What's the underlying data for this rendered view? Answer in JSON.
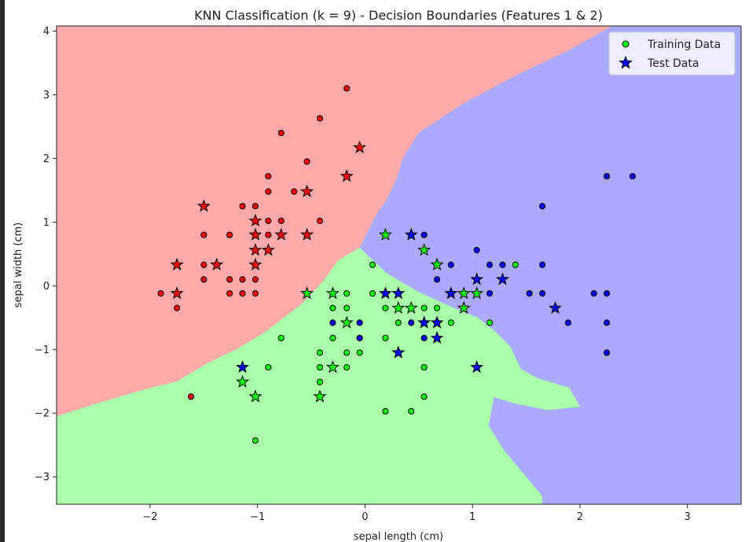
{
  "chart_data": {
    "type": "scatter",
    "title": "KNN Classification (k = 9) - Decision Boundaries (Features 1 & 2)",
    "xlabel": "sepal length (cm)",
    "ylabel": "sepal width (cm)",
    "xlim": [
      -2.87,
      3.5
    ],
    "ylim": [
      -3.43,
      4.08
    ],
    "x_ticks": [
      -2,
      -1,
      0,
      1,
      2,
      3
    ],
    "y_ticks": [
      -3,
      -2,
      -1,
      0,
      1,
      2,
      3,
      4
    ],
    "x_tick_labels": [
      "−2",
      "−1",
      "0",
      "1",
      "2",
      "3"
    ],
    "y_tick_labels": [
      "−3",
      "−2",
      "−1",
      "0",
      "1",
      "2",
      "3",
      "4"
    ],
    "grid": false,
    "legend_position": "top-right",
    "legend": [
      {
        "label": "Training Data",
        "marker": "circle",
        "color": "#00ff00"
      },
      {
        "label": "Test Data",
        "marker": "star",
        "color": "#0000ff"
      }
    ],
    "class_colors": {
      "region": [
        "#ffaaaa",
        "#aaffaa",
        "#aaaaff"
      ],
      "point": [
        "#ff0000",
        "#00ff00",
        "#0000ff"
      ]
    },
    "regions": [
      {
        "class": 0,
        "polygon": [
          [
            -2.87,
            4.08
          ],
          [
            2.3,
            4.08
          ],
          [
            1.9,
            3.7
          ],
          [
            1.4,
            3.3
          ],
          [
            0.9,
            2.85
          ],
          [
            0.5,
            2.4
          ],
          [
            0.35,
            2.0
          ],
          [
            0.3,
            1.7
          ],
          [
            0.2,
            1.35
          ],
          [
            0.1,
            1.1
          ],
          [
            -0.05,
            0.6
          ],
          [
            -0.25,
            0.4
          ],
          [
            -0.4,
            0.05
          ],
          [
            -0.6,
            -0.3
          ],
          [
            -0.95,
            -0.75
          ],
          [
            -1.2,
            -1.0
          ],
          [
            -1.45,
            -1.2
          ],
          [
            -1.75,
            -1.5
          ],
          [
            -2.1,
            -1.65
          ],
          [
            -2.5,
            -1.85
          ],
          [
            -2.87,
            -2.05
          ]
        ]
      },
      {
        "class": 1,
        "polygon": [
          [
            -2.87,
            -2.05
          ],
          [
            -2.5,
            -1.85
          ],
          [
            -2.1,
            -1.65
          ],
          [
            -1.75,
            -1.5
          ],
          [
            -1.45,
            -1.2
          ],
          [
            -1.2,
            -1.0
          ],
          [
            -0.95,
            -0.75
          ],
          [
            -0.6,
            -0.3
          ],
          [
            -0.4,
            0.05
          ],
          [
            -0.25,
            0.4
          ],
          [
            -0.05,
            0.6
          ],
          [
            0.2,
            0.2
          ],
          [
            0.5,
            -0.1
          ],
          [
            0.7,
            -0.25
          ],
          [
            0.9,
            -0.4
          ],
          [
            1.05,
            -0.5
          ],
          [
            1.2,
            -0.7
          ],
          [
            1.35,
            -0.95
          ],
          [
            1.45,
            -1.3
          ],
          [
            1.6,
            -1.45
          ],
          [
            1.9,
            -1.6
          ],
          [
            2.0,
            -1.9
          ],
          [
            1.7,
            -1.95
          ],
          [
            1.4,
            -1.85
          ],
          [
            1.2,
            -1.75
          ],
          [
            1.15,
            -2.2
          ],
          [
            1.3,
            -2.6
          ],
          [
            1.5,
            -3.0
          ],
          [
            1.65,
            -3.3
          ],
          [
            1.65,
            -3.43
          ],
          [
            -2.87,
            -3.43
          ]
        ]
      }
    ],
    "series": [
      {
        "name": "Training Data",
        "marker": "circle",
        "points": [
          [
            -1.9,
            -0.12,
            0
          ],
          [
            -1.75,
            -0.35,
            0
          ],
          [
            -1.5,
            0.1,
            0
          ],
          [
            -1.5,
            0.33,
            0
          ],
          [
            -1.5,
            0.8,
            0
          ],
          [
            -1.38,
            0.33,
            0
          ],
          [
            -1.26,
            0.8,
            0
          ],
          [
            -1.26,
            0.1,
            0
          ],
          [
            -1.26,
            -0.12,
            0
          ],
          [
            -1.14,
            1.25,
            0
          ],
          [
            -1.14,
            0.1,
            0
          ],
          [
            -1.14,
            -0.12,
            0
          ],
          [
            -1.02,
            1.25,
            0
          ],
          [
            -1.02,
            0.1,
            0
          ],
          [
            -1.02,
            -0.12,
            0
          ],
          [
            -0.9,
            1.72,
            0
          ],
          [
            -0.9,
            1.48,
            0
          ],
          [
            -0.9,
            1.02,
            0
          ],
          [
            -0.9,
            0.8,
            0
          ],
          [
            -0.78,
            2.4,
            0
          ],
          [
            -0.78,
            1.02,
            0
          ],
          [
            -0.66,
            1.48,
            0
          ],
          [
            -0.54,
            1.95,
            0
          ],
          [
            -0.42,
            2.63,
            0
          ],
          [
            -0.42,
            1.02,
            0
          ],
          [
            -0.17,
            3.1,
            0
          ],
          [
            -1.62,
            -1.74,
            0
          ],
          [
            -1.02,
            -2.43,
            1
          ],
          [
            -0.9,
            -1.28,
            1
          ],
          [
            -0.78,
            -0.82,
            1
          ],
          [
            -0.42,
            -1.05,
            1
          ],
          [
            -0.42,
            -1.28,
            1
          ],
          [
            -0.42,
            -1.51,
            1
          ],
          [
            -0.3,
            -0.35,
            1
          ],
          [
            -0.3,
            -0.82,
            1
          ],
          [
            -0.17,
            -0.12,
            1
          ],
          [
            -0.17,
            -0.35,
            1
          ],
          [
            -0.17,
            -1.05,
            1
          ],
          [
            -0.17,
            -1.28,
            1
          ],
          [
            -0.05,
            -1.05,
            1
          ],
          [
            -0.05,
            -0.82,
            1
          ],
          [
            0.07,
            0.33,
            1
          ],
          [
            0.07,
            -0.12,
            1
          ],
          [
            0.19,
            -0.35,
            1
          ],
          [
            0.19,
            -0.82,
            1
          ],
          [
            0.19,
            -1.97,
            1
          ],
          [
            0.31,
            -0.58,
            1
          ],
          [
            0.43,
            -1.97,
            1
          ],
          [
            0.55,
            -1.28,
            1
          ],
          [
            0.55,
            -1.74,
            1
          ],
          [
            0.55,
            -0.35,
            1
          ],
          [
            0.67,
            -0.35,
            1
          ],
          [
            0.67,
            -0.58,
            1
          ],
          [
            0.8,
            -0.58,
            1
          ],
          [
            0.92,
            -0.12,
            1
          ],
          [
            1.16,
            -0.58,
            1
          ],
          [
            1.4,
            0.33,
            1
          ],
          [
            -0.3,
            -0.58,
            2
          ],
          [
            -0.05,
            -0.58,
            2
          ],
          [
            -0.05,
            -0.82,
            2
          ],
          [
            0.43,
            -0.58,
            2
          ],
          [
            0.55,
            0.8,
            2
          ],
          [
            0.55,
            -0.58,
            2
          ],
          [
            0.55,
            -0.82,
            2
          ],
          [
            0.67,
            0.1,
            2
          ],
          [
            0.8,
            0.33,
            2
          ],
          [
            1.04,
            0.56,
            2
          ],
          [
            1.16,
            0.33,
            2
          ],
          [
            1.16,
            -0.12,
            2
          ],
          [
            1.28,
            0.33,
            2
          ],
          [
            1.53,
            -0.12,
            2
          ],
          [
            1.65,
            1.25,
            2
          ],
          [
            1.65,
            0.33,
            2
          ],
          [
            1.65,
            -0.12,
            2
          ],
          [
            1.89,
            -0.58,
            2
          ],
          [
            2.13,
            -0.12,
            2
          ],
          [
            2.25,
            1.72,
            2
          ],
          [
            2.25,
            -0.12,
            2
          ],
          [
            2.25,
            -0.58,
            2
          ],
          [
            2.25,
            -1.05,
            2
          ],
          [
            2.49,
            1.72,
            2
          ],
          [
            0.19,
            -0.12,
            2
          ],
          [
            0.31,
            -0.12,
            2
          ]
        ]
      },
      {
        "name": "Test Data",
        "marker": "star",
        "points": [
          [
            -1.75,
            0.33,
            0
          ],
          [
            -1.75,
            -0.12,
            0
          ],
          [
            -1.5,
            1.25,
            0
          ],
          [
            -1.38,
            0.33,
            0
          ],
          [
            -1.02,
            1.02,
            0
          ],
          [
            -1.02,
            0.8,
            0
          ],
          [
            -1.02,
            0.56,
            0
          ],
          [
            -1.02,
            0.33,
            0
          ],
          [
            -0.9,
            0.56,
            0
          ],
          [
            -0.78,
            0.8,
            0
          ],
          [
            -0.54,
            1.48,
            0
          ],
          [
            -0.54,
            0.8,
            0
          ],
          [
            -0.17,
            1.72,
            0
          ],
          [
            -0.05,
            2.17,
            0
          ],
          [
            -1.14,
            -1.51,
            1
          ],
          [
            -1.02,
            -1.74,
            1
          ],
          [
            -0.54,
            -0.12,
            1
          ],
          [
            -0.42,
            -1.74,
            1
          ],
          [
            -0.3,
            -0.12,
            1
          ],
          [
            -0.3,
            -1.28,
            1
          ],
          [
            -0.17,
            -0.58,
            1
          ],
          [
            0.19,
            0.8,
            1
          ],
          [
            0.31,
            -0.35,
            1
          ],
          [
            0.43,
            -0.35,
            1
          ],
          [
            0.55,
            0.56,
            1
          ],
          [
            0.67,
            0.33,
            1
          ],
          [
            0.92,
            -0.12,
            1
          ],
          [
            0.92,
            -0.35,
            1
          ],
          [
            1.04,
            -0.12,
            1
          ],
          [
            -1.14,
            -1.28,
            2
          ],
          [
            0.19,
            -0.12,
            2
          ],
          [
            0.31,
            -0.12,
            2
          ],
          [
            0.31,
            -1.05,
            2
          ],
          [
            0.43,
            0.8,
            2
          ],
          [
            0.55,
            -0.58,
            2
          ],
          [
            0.67,
            -0.58,
            2
          ],
          [
            0.67,
            -0.82,
            2
          ],
          [
            0.8,
            -0.12,
            2
          ],
          [
            1.04,
            0.1,
            2
          ],
          [
            1.04,
            -1.28,
            2
          ],
          [
            1.28,
            0.1,
            2
          ],
          [
            1.77,
            -0.35,
            2
          ]
        ]
      }
    ]
  }
}
